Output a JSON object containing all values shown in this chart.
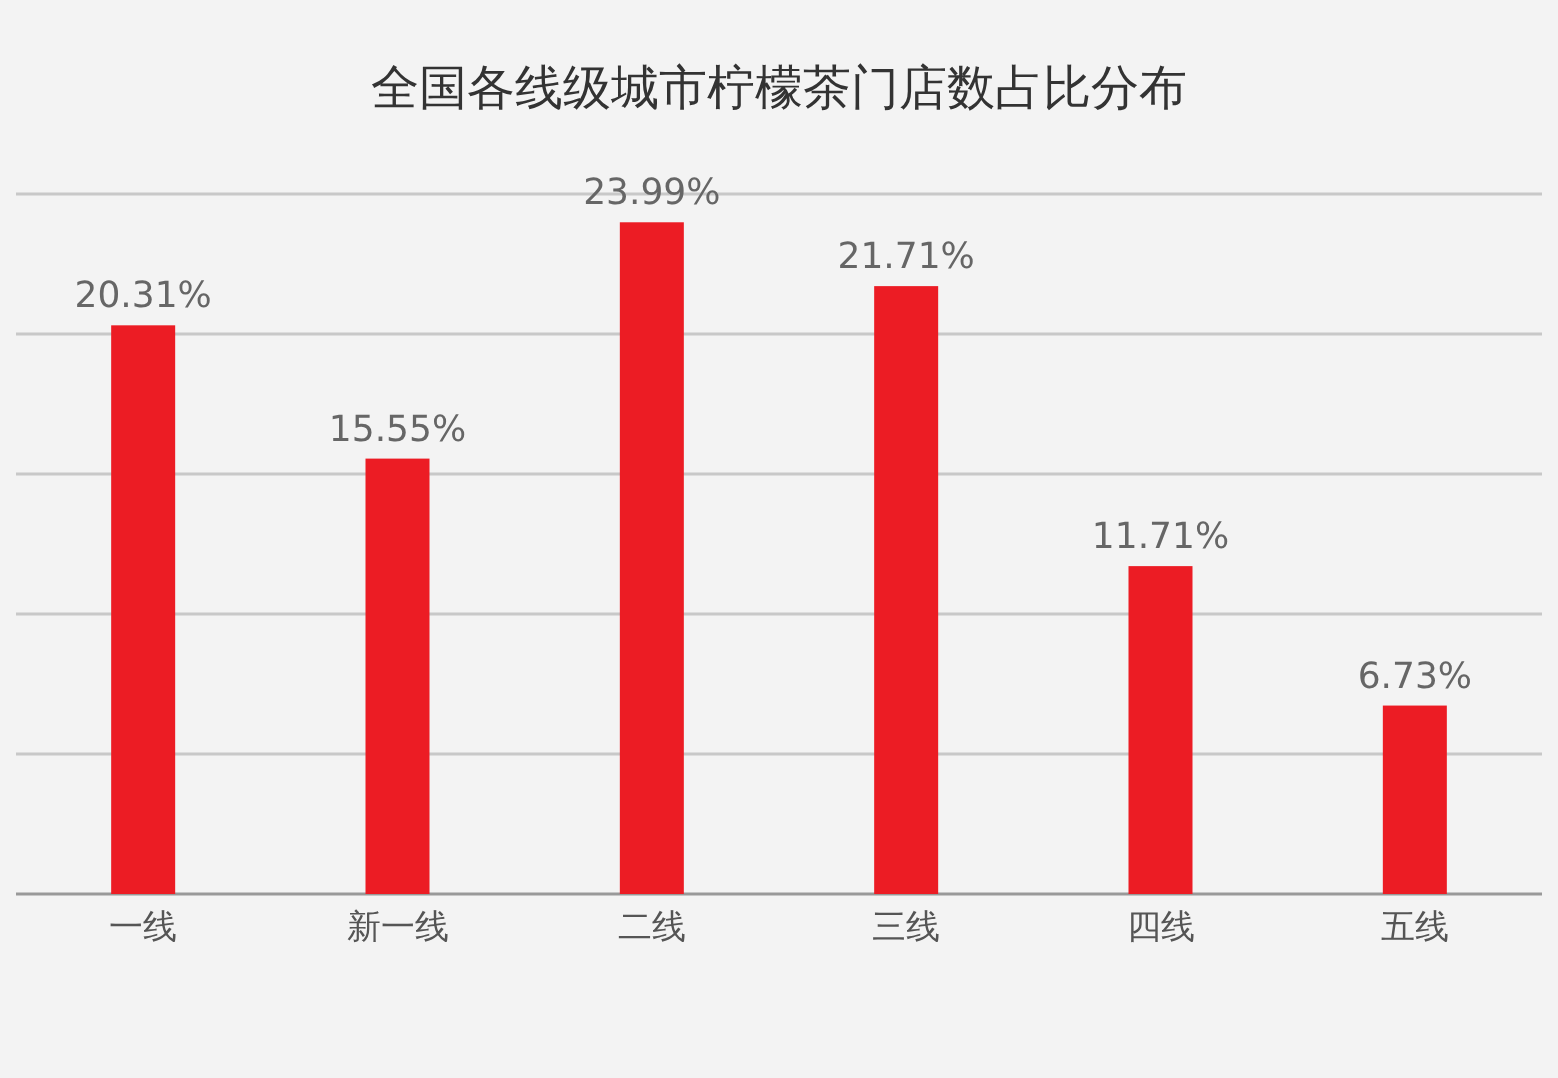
{
  "chart_data": {
    "type": "bar",
    "title": "全国各线级城市柠檬茶门店数占比分布",
    "categories": [
      "一线",
      "新一线",
      "二线",
      "三线",
      "四线",
      "五线"
    ],
    "values": [
      20.31,
      15.55,
      23.99,
      21.71,
      11.71,
      6.73
    ],
    "value_labels": [
      "20.31%",
      "15.55%",
      "23.99%",
      "21.71%",
      "11.71%",
      "6.73%"
    ],
    "color": "#ec1c24",
    "ylim": [
      0,
      25
    ],
    "yticks": [
      {
        "value": 0,
        "label": null
      },
      {
        "value": 5,
        "label": null
      },
      {
        "value": 10,
        "label": null
      },
      {
        "value": 15,
        "label": null
      },
      {
        "value": 20,
        "label": null
      },
      {
        "value": 25,
        "label": null
      }
    ],
    "grid": "y"
  }
}
